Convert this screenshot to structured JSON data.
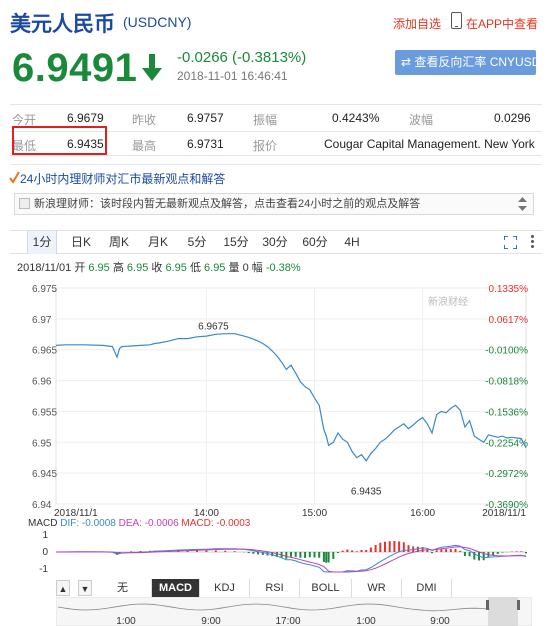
{
  "header": {
    "title": "美元人民币",
    "code": "(USDCNY)",
    "add_watch": "添加自选",
    "view_app": "在APP中查看"
  },
  "quote": {
    "price": "6.9491",
    "change": "-0.0266 (-0.3813%)",
    "datetime": "2018-11-01 16:46:41",
    "reverse_button": "查看反向汇率 CNYUSD",
    "color_down": "#1a8a3a"
  },
  "stats": {
    "row1": [
      {
        "label": "今开",
        "value": "6.9679"
      },
      {
        "label": "昨收",
        "value": "6.9757"
      },
      {
        "label": "振幅",
        "value": "0.4243%"
      },
      {
        "label": "波幅",
        "value": "0.0296"
      }
    ],
    "row2": [
      {
        "label": "最低",
        "value": "6.9435"
      },
      {
        "label": "最高",
        "value": "6.9731"
      },
      {
        "label": "报价",
        "value": "Cougar Capital Management. New York"
      }
    ]
  },
  "news": {
    "heading": "24小时内理财师对汇市最新观点和解答",
    "message": "新浪理财师：该时段内暂无最新观点及解答，点击查看24小时之前的观点及解答"
  },
  "period_tabs": [
    "1分",
    "日K",
    "周K",
    "月K",
    "5分",
    "15分",
    "30分",
    "60分",
    "4H"
  ],
  "active_period": "1分",
  "ohlc": {
    "date": "2018/11/01",
    "open_label": "开",
    "open": "6.95",
    "high_label": "高",
    "high": "6.95",
    "close_label": "收",
    "close": "6.95",
    "low_label": "低",
    "low": "6.95",
    "vol_label": "量",
    "vol": "0",
    "amp_label": "幅",
    "amp": "-0.38%"
  },
  "chart_data": {
    "type": "line",
    "title": "",
    "watermark": "新浪财经",
    "y_ticks": [
      "6.975",
      "6.97",
      "6.965",
      "6.96",
      "6.955",
      "6.95",
      "6.945",
      "6.94"
    ],
    "ylim": [
      6.94,
      6.975
    ],
    "pct_ticks": [
      "0.1335%",
      "0.0617%",
      "-0.0100%",
      "-0.0818%",
      "-0.1536%",
      "-0.2254%",
      "-0.2972%",
      "-0.3690%"
    ],
    "x_ticks": [
      "2018/11/1",
      "14:00",
      "15:00",
      "16:00",
      "2018/11/1"
    ],
    "annotations": [
      {
        "text": "6.9675",
        "x": 0.335,
        "y": 6.9675
      },
      {
        "text": "6.9435",
        "x": 0.66,
        "y": 6.9435
      }
    ],
    "series": [
      {
        "color": "#3a8ac8",
        "x": [
          0,
          0.02,
          0.06,
          0.1,
          0.12,
          0.13,
          0.135,
          0.14,
          0.16,
          0.18,
          0.2,
          0.21,
          0.22,
          0.24,
          0.26,
          0.28,
          0.3,
          0.32,
          0.34,
          0.36,
          0.38,
          0.4,
          0.41,
          0.42,
          0.43,
          0.44,
          0.45,
          0.46,
          0.47,
          0.48,
          0.49,
          0.5,
          0.51,
          0.52,
          0.53,
          0.54,
          0.55,
          0.56,
          0.57,
          0.575,
          0.58,
          0.59,
          0.6,
          0.61,
          0.62,
          0.63,
          0.64,
          0.65,
          0.66,
          0.67,
          0.68,
          0.69,
          0.7,
          0.71,
          0.72,
          0.73,
          0.74,
          0.75,
          0.76,
          0.77,
          0.78,
          0.79,
          0.8,
          0.81,
          0.82,
          0.83,
          0.84,
          0.85,
          0.86,
          0.87,
          0.88,
          0.89,
          0.9,
          0.91,
          0.92,
          0.93,
          0.94,
          0.95,
          0.96,
          0.97,
          0.98,
          0.99,
          1.0
        ],
        "y": [
          6.9657,
          6.9658,
          6.9658,
          6.9657,
          6.9655,
          6.9638,
          6.9652,
          6.9655,
          6.9656,
          6.9657,
          6.9658,
          6.966,
          6.9661,
          6.9664,
          6.9668,
          6.9668,
          6.9671,
          6.9672,
          6.9675,
          6.9676,
          6.9676,
          6.9672,
          6.967,
          6.9667,
          6.9664,
          6.966,
          6.9655,
          6.9648,
          6.964,
          6.963,
          6.9618,
          6.9625,
          6.9612,
          6.9598,
          6.959,
          6.9585,
          6.9572,
          6.956,
          6.952,
          6.951,
          6.9495,
          6.95,
          6.9515,
          6.9505,
          6.95,
          6.9485,
          6.9475,
          6.948,
          6.947,
          6.9482,
          6.949,
          6.95,
          6.9505,
          6.9512,
          6.952,
          6.9525,
          6.953,
          6.9522,
          6.9528,
          6.9535,
          6.954,
          6.953,
          6.9515,
          6.9545,
          6.955,
          6.9548,
          6.9555,
          6.956,
          6.9552,
          6.9525,
          6.9535,
          6.951,
          6.9505,
          6.95,
          6.9512,
          6.951,
          6.9508,
          6.951,
          6.9507,
          6.9508,
          6.9507,
          6.9506,
          6.9491
        ]
      }
    ],
    "grid": true
  },
  "macd": {
    "label": "MACD",
    "dif_label": "DIF:",
    "dif": "-0.0008",
    "dea_label": "DEA:",
    "dea": "-0.0006",
    "macd_label": "MACD:",
    "macd": "-0.0003",
    "y_ticks": [
      "1",
      "0",
      "-1"
    ],
    "color_dif": "#3a8ac8",
    "color_dea": "#c040c0",
    "color_macd": "#e83030"
  },
  "indicator_tabs": [
    "无",
    "MACD",
    "KDJ",
    "RSI",
    "BOLL",
    "WR",
    "DMI"
  ],
  "active_indicator": "MACD",
  "mini_x_ticks": [
    "1:00",
    "9:00",
    "17:00",
    "1:00",
    "9:00"
  ]
}
